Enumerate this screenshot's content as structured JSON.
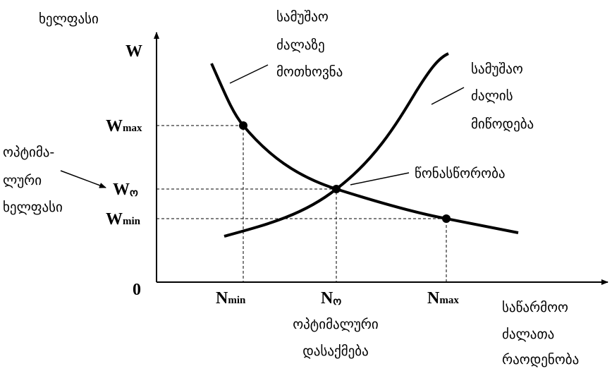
{
  "y_axis": {
    "title": "ხელფასი",
    "symbol": "W"
  },
  "origin": "0",
  "wage_levels": [
    {
      "symbol": "W",
      "sub": "max"
    },
    {
      "symbol": "W",
      "sub": "ო"
    },
    {
      "symbol": "W",
      "sub": "min"
    }
  ],
  "employment_levels": [
    {
      "symbol": "N",
      "sub": "min"
    },
    {
      "symbol": "N",
      "sub": "ო"
    },
    {
      "symbol": "N",
      "sub": "max"
    }
  ],
  "demand_label": {
    "lines": [
      "სამუშაო",
      "ძალაზე",
      "მოთხოვნა"
    ]
  },
  "supply_label": {
    "lines": [
      "სამუშაო",
      "ძალის",
      "მიწოდება"
    ]
  },
  "equilibrium_label": "წონასწორობა",
  "optimal_wage_label": {
    "lines": [
      "ოპტიმა-",
      "ლური",
      "ხელფასი"
    ]
  },
  "optimal_employment_label": {
    "lines": [
      "ოპტიმალური",
      "დასაქმება"
    ]
  },
  "x_axis": {
    "title_lines": [
      "საწარმოო",
      "ძალათა",
      "რაოდენობა"
    ]
  }
}
